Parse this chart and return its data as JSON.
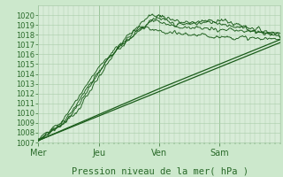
{
  "title": "",
  "xlabel": "Pression niveau de la mer( hPa )",
  "ylabel": "",
  "bg_color": "#cce8cc",
  "plot_bg_color": "#d8ecd8",
  "grid_color": "#aaccaa",
  "line_color": "#1a5c1a",
  "ylim": [
    1007,
    1021
  ],
  "yticks": [
    1007,
    1008,
    1009,
    1010,
    1011,
    1012,
    1013,
    1014,
    1015,
    1016,
    1017,
    1018,
    1019,
    1020
  ],
  "xtick_labels": [
    "Mer",
    "Jeu",
    "Ven",
    "Sam"
  ],
  "xtick_positions": [
    0,
    48,
    96,
    144
  ],
  "xlim": [
    0,
    192
  ],
  "font_color": "#2a6a2a",
  "xlabel_fontsize": 7.5,
  "ytick_fontsize": 6.0,
  "xtick_fontsize": 7.0
}
